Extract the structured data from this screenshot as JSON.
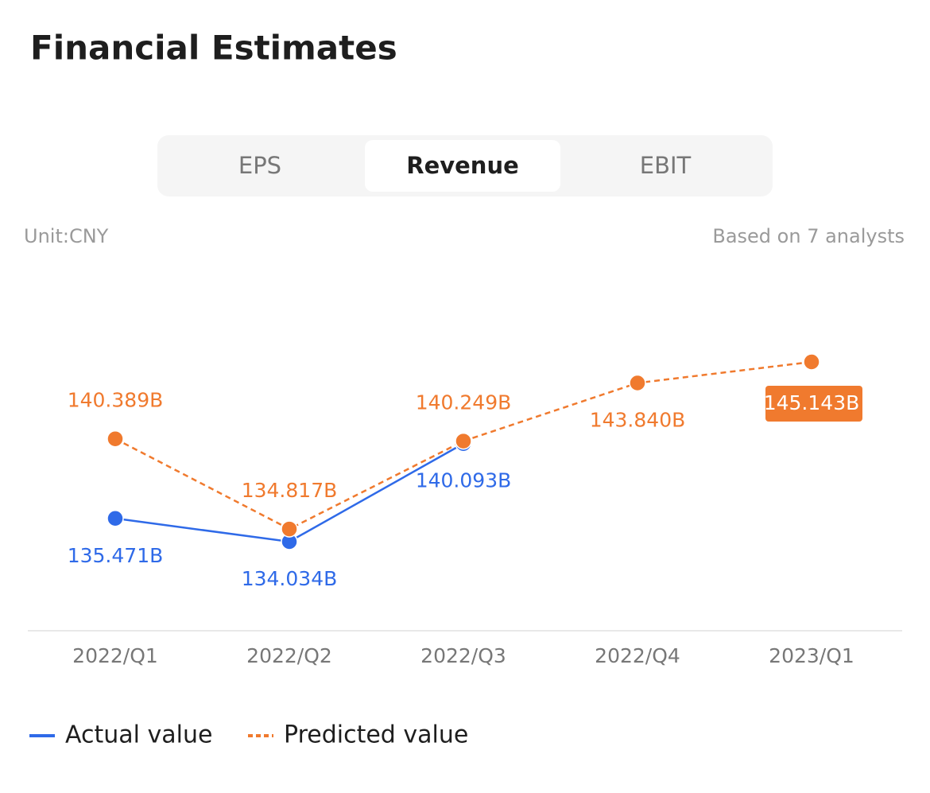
{
  "header": {
    "title": "Financial Estimates"
  },
  "tabs": [
    "EPS",
    "Revenue",
    "EBIT"
  ],
  "selected_tab": "Revenue",
  "unit": "Unit:CNY",
  "note": "Based on 7 analysts",
  "chart_data": {
    "type": "line",
    "categories": [
      "2022/Q1",
      "2022/Q2",
      "2022/Q3",
      "2022/Q4",
      "2023/Q1"
    ],
    "series": [
      {
        "name": "Actual value",
        "color": "#2f6ae8",
        "dashed": false,
        "values": [
          135.471,
          134.034,
          140.093,
          null,
          null
        ],
        "value_labels": [
          "135.471B",
          "134.034B",
          "140.093B",
          null,
          null
        ]
      },
      {
        "name": "Predicted value",
        "color": "#f07a2e",
        "dashed": true,
        "values": [
          140.389,
          134.817,
          140.249,
          143.84,
          145.143
        ],
        "value_labels": [
          "140.389B",
          "134.817B",
          "140.249B",
          "143.840B",
          "145.143B"
        ]
      }
    ]
  }
}
